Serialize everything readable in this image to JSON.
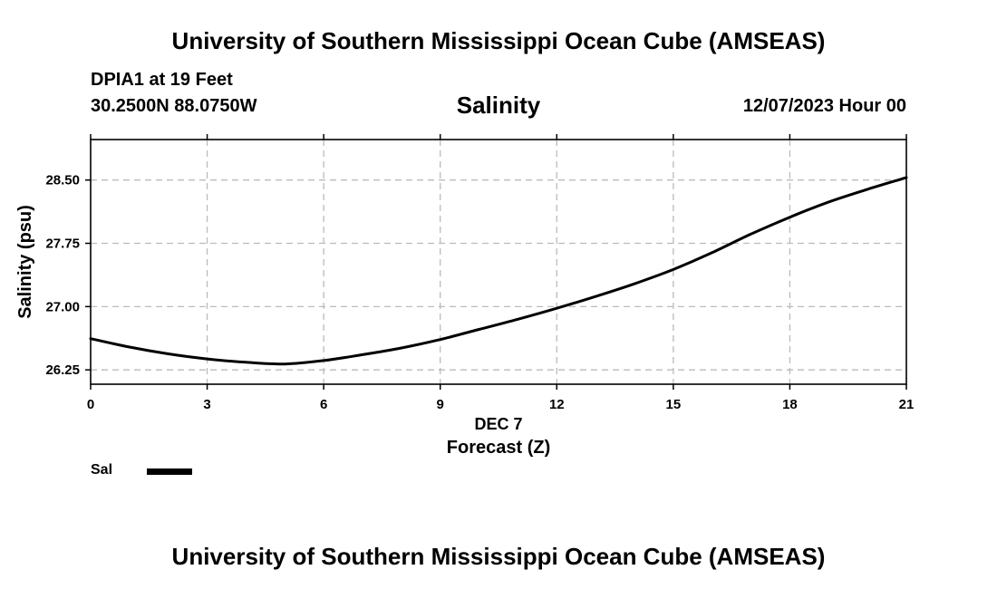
{
  "header": {
    "title": "University of Southern Mississippi Ocean Cube (AMSEAS)",
    "station": "DPIA1 at 19 Feet",
    "coords": "30.2500N  88.0750W",
    "datetime": "12/07/2023 Hour 00"
  },
  "footer": {
    "title": "University of Southern Mississippi Ocean Cube (AMSEAS)"
  },
  "legend": {
    "label": "Sal"
  },
  "colors": {
    "line": "#000000",
    "grid": "#bbbbbb",
    "background": "#ffffff"
  },
  "chart_data": {
    "type": "line",
    "title": "Salinity",
    "xlabel": "Forecast (Z)",
    "xsublabel": "DEC 7",
    "ylabel": "Salinity (psu)",
    "xlim": [
      0,
      21
    ],
    "ylim": [
      26.08,
      28.98
    ],
    "xticks": [
      0,
      3,
      6,
      9,
      12,
      15,
      18,
      21
    ],
    "yticks": [
      26.25,
      27.0,
      27.75,
      28.5
    ],
    "ytick_labels": [
      "26.25",
      "27.00",
      "27.75",
      "28.50"
    ],
    "grid": true,
    "series": [
      {
        "name": "Sal",
        "x": [
          0,
          1,
          2,
          3,
          4,
          5,
          6,
          7,
          8,
          9,
          10,
          11,
          12,
          13,
          14,
          15,
          16,
          17,
          18,
          19,
          20,
          21
        ],
        "y": [
          26.62,
          26.52,
          26.44,
          26.38,
          26.34,
          26.32,
          26.36,
          26.43,
          26.51,
          26.61,
          26.73,
          26.85,
          26.98,
          27.12,
          27.27,
          27.44,
          27.64,
          27.86,
          28.06,
          28.24,
          28.39,
          28.53
        ]
      }
    ]
  }
}
